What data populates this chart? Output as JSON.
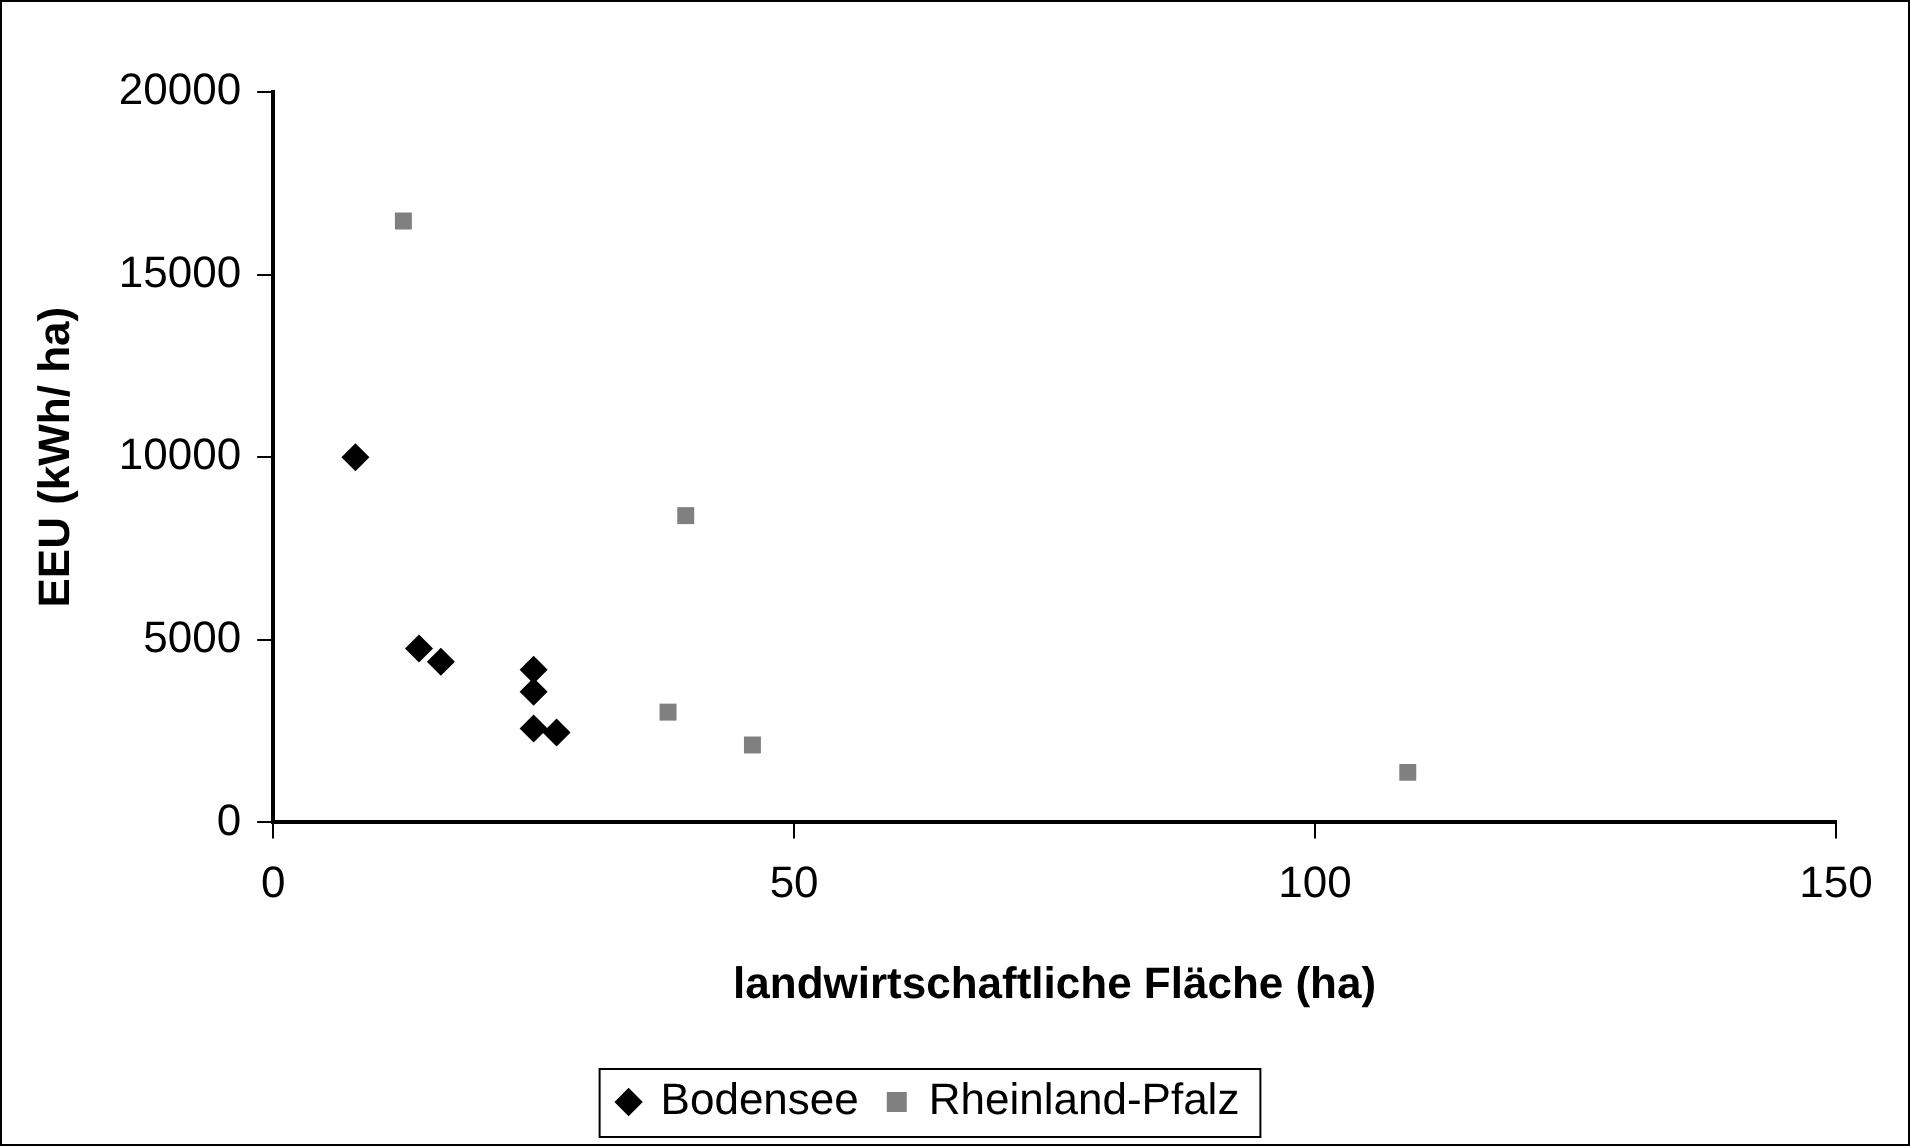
{
  "chart_data": {
    "type": "scatter",
    "xlabel": "landwirtschaftliche Fläche (ha)",
    "ylabel": "EEU (kWh/ ha)",
    "xlim": [
      0,
      150
    ],
    "xticks": [
      0,
      50,
      100,
      150
    ],
    "ylim": [
      0,
      20000
    ],
    "yticks": [
      0,
      5000,
      10000,
      15000,
      20000
    ],
    "grid": false,
    "legend": "bottom",
    "series": [
      {
        "name": "Bodensee",
        "color": "#000000",
        "marker": "diamond",
        "x": [
          7.9,
          14,
          16.1,
          25,
          25,
          25,
          27.2
        ],
        "values": [
          10000,
          4760,
          4400,
          4180,
          3580,
          2570,
          2460
        ]
      },
      {
        "name": "Rheinland-Pfalz",
        "color": "#808080",
        "marker": "square",
        "x": [
          12.5,
          39.6,
          37.9,
          46,
          108.9
        ],
        "values": [
          16470,
          8400,
          3020,
          2120,
          1370
        ]
      }
    ]
  }
}
